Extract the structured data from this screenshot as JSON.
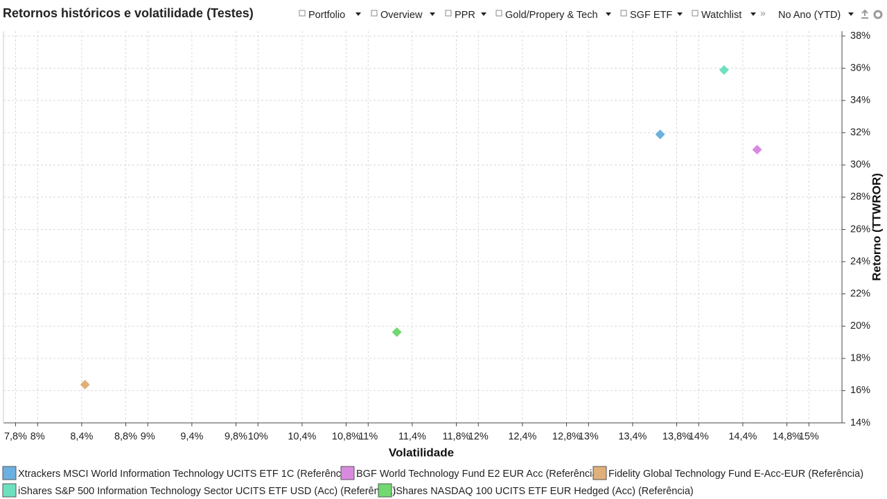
{
  "header": {
    "title": "Retornos históricos e volatilidade (Testes)",
    "toolbar": [
      "Portfolio",
      "Overview",
      "PPR",
      "Gold/Propery & Tech",
      "SGF ETF",
      "Watchlist"
    ],
    "period": "No Ano (YTD)"
  },
  "chart_data": {
    "type": "scatter",
    "x_label": "Volatilidade",
    "y_label": "Retorno (TTWROR)",
    "xlim": [
      7.69,
      15.3
    ],
    "ylim": [
      14,
      38.3
    ],
    "xticks": [
      {
        "value": 7.8,
        "label": "7,8%"
      },
      {
        "value": 8,
        "label": "8%"
      },
      {
        "value": 8.4,
        "label": "8,4%"
      },
      {
        "value": 8.8,
        "label": "8,8%"
      },
      {
        "value": 9,
        "label": "9%"
      },
      {
        "value": 9.4,
        "label": "9,4%"
      },
      {
        "value": 9.8,
        "label": "9,8%"
      },
      {
        "value": 10,
        "label": "10%"
      },
      {
        "value": 10.4,
        "label": "10,4%"
      },
      {
        "value": 10.8,
        "label": "10,8%"
      },
      {
        "value": 11,
        "label": "11%"
      },
      {
        "value": 11.4,
        "label": "11,4%"
      },
      {
        "value": 11.8,
        "label": "11,8%"
      },
      {
        "value": 12,
        "label": "12%"
      },
      {
        "value": 12.4,
        "label": "12,4%"
      },
      {
        "value": 12.8,
        "label": "12,8%"
      },
      {
        "value": 13,
        "label": "13%"
      },
      {
        "value": 13.4,
        "label": "13,4%"
      },
      {
        "value": 13.8,
        "label": "13,8%"
      },
      {
        "value": 14,
        "label": "14%"
      },
      {
        "value": 14.4,
        "label": "14,4%"
      },
      {
        "value": 14.8,
        "label": "14,8%"
      },
      {
        "value": 15,
        "label": "15%"
      }
    ],
    "yticks": [
      {
        "value": 14,
        "label": "14%"
      },
      {
        "value": 16,
        "label": "16%"
      },
      {
        "value": 18,
        "label": "18%"
      },
      {
        "value": 20,
        "label": "20%"
      },
      {
        "value": 22,
        "label": "22%"
      },
      {
        "value": 24,
        "label": "24%"
      },
      {
        "value": 26,
        "label": "26%"
      },
      {
        "value": 28,
        "label": "28%"
      },
      {
        "value": 30,
        "label": "30%"
      },
      {
        "value": 32,
        "label": "32%"
      },
      {
        "value": 34,
        "label": "34%"
      },
      {
        "value": 36,
        "label": "36%"
      },
      {
        "value": 38,
        "label": "38%"
      }
    ],
    "grid": true,
    "series": [
      {
        "name": "Xtrackers MSCI World Information Technology UCITS ETF 1C (Referência)",
        "color": "#6cb0e0",
        "x": [
          13.65
        ],
        "values": [
          31.89
        ]
      },
      {
        "name": "BGF World Technology Fund E2 EUR Acc (Referência)",
        "color": "#d98ae0",
        "x": [
          14.53
        ],
        "values": [
          30.95
        ]
      },
      {
        "name": "Fidelity Global Technology Fund E-Acc-EUR (Referência)",
        "color": "#e0b07a",
        "x": [
          8.43
        ],
        "values": [
          16.37
        ]
      },
      {
        "name": "iShares S&P 500 Information Technology Sector UCITS ETF USD (Acc) (Referência)",
        "color": "#6ee0c0",
        "x": [
          14.23
        ],
        "values": [
          35.89
        ]
      },
      {
        "name": "iShares NASDAQ 100 UCITS ETF EUR Hedged (Acc) (Referência)",
        "color": "#72d872",
        "x": [
          11.26
        ],
        "values": [
          19.63
        ]
      }
    ]
  }
}
